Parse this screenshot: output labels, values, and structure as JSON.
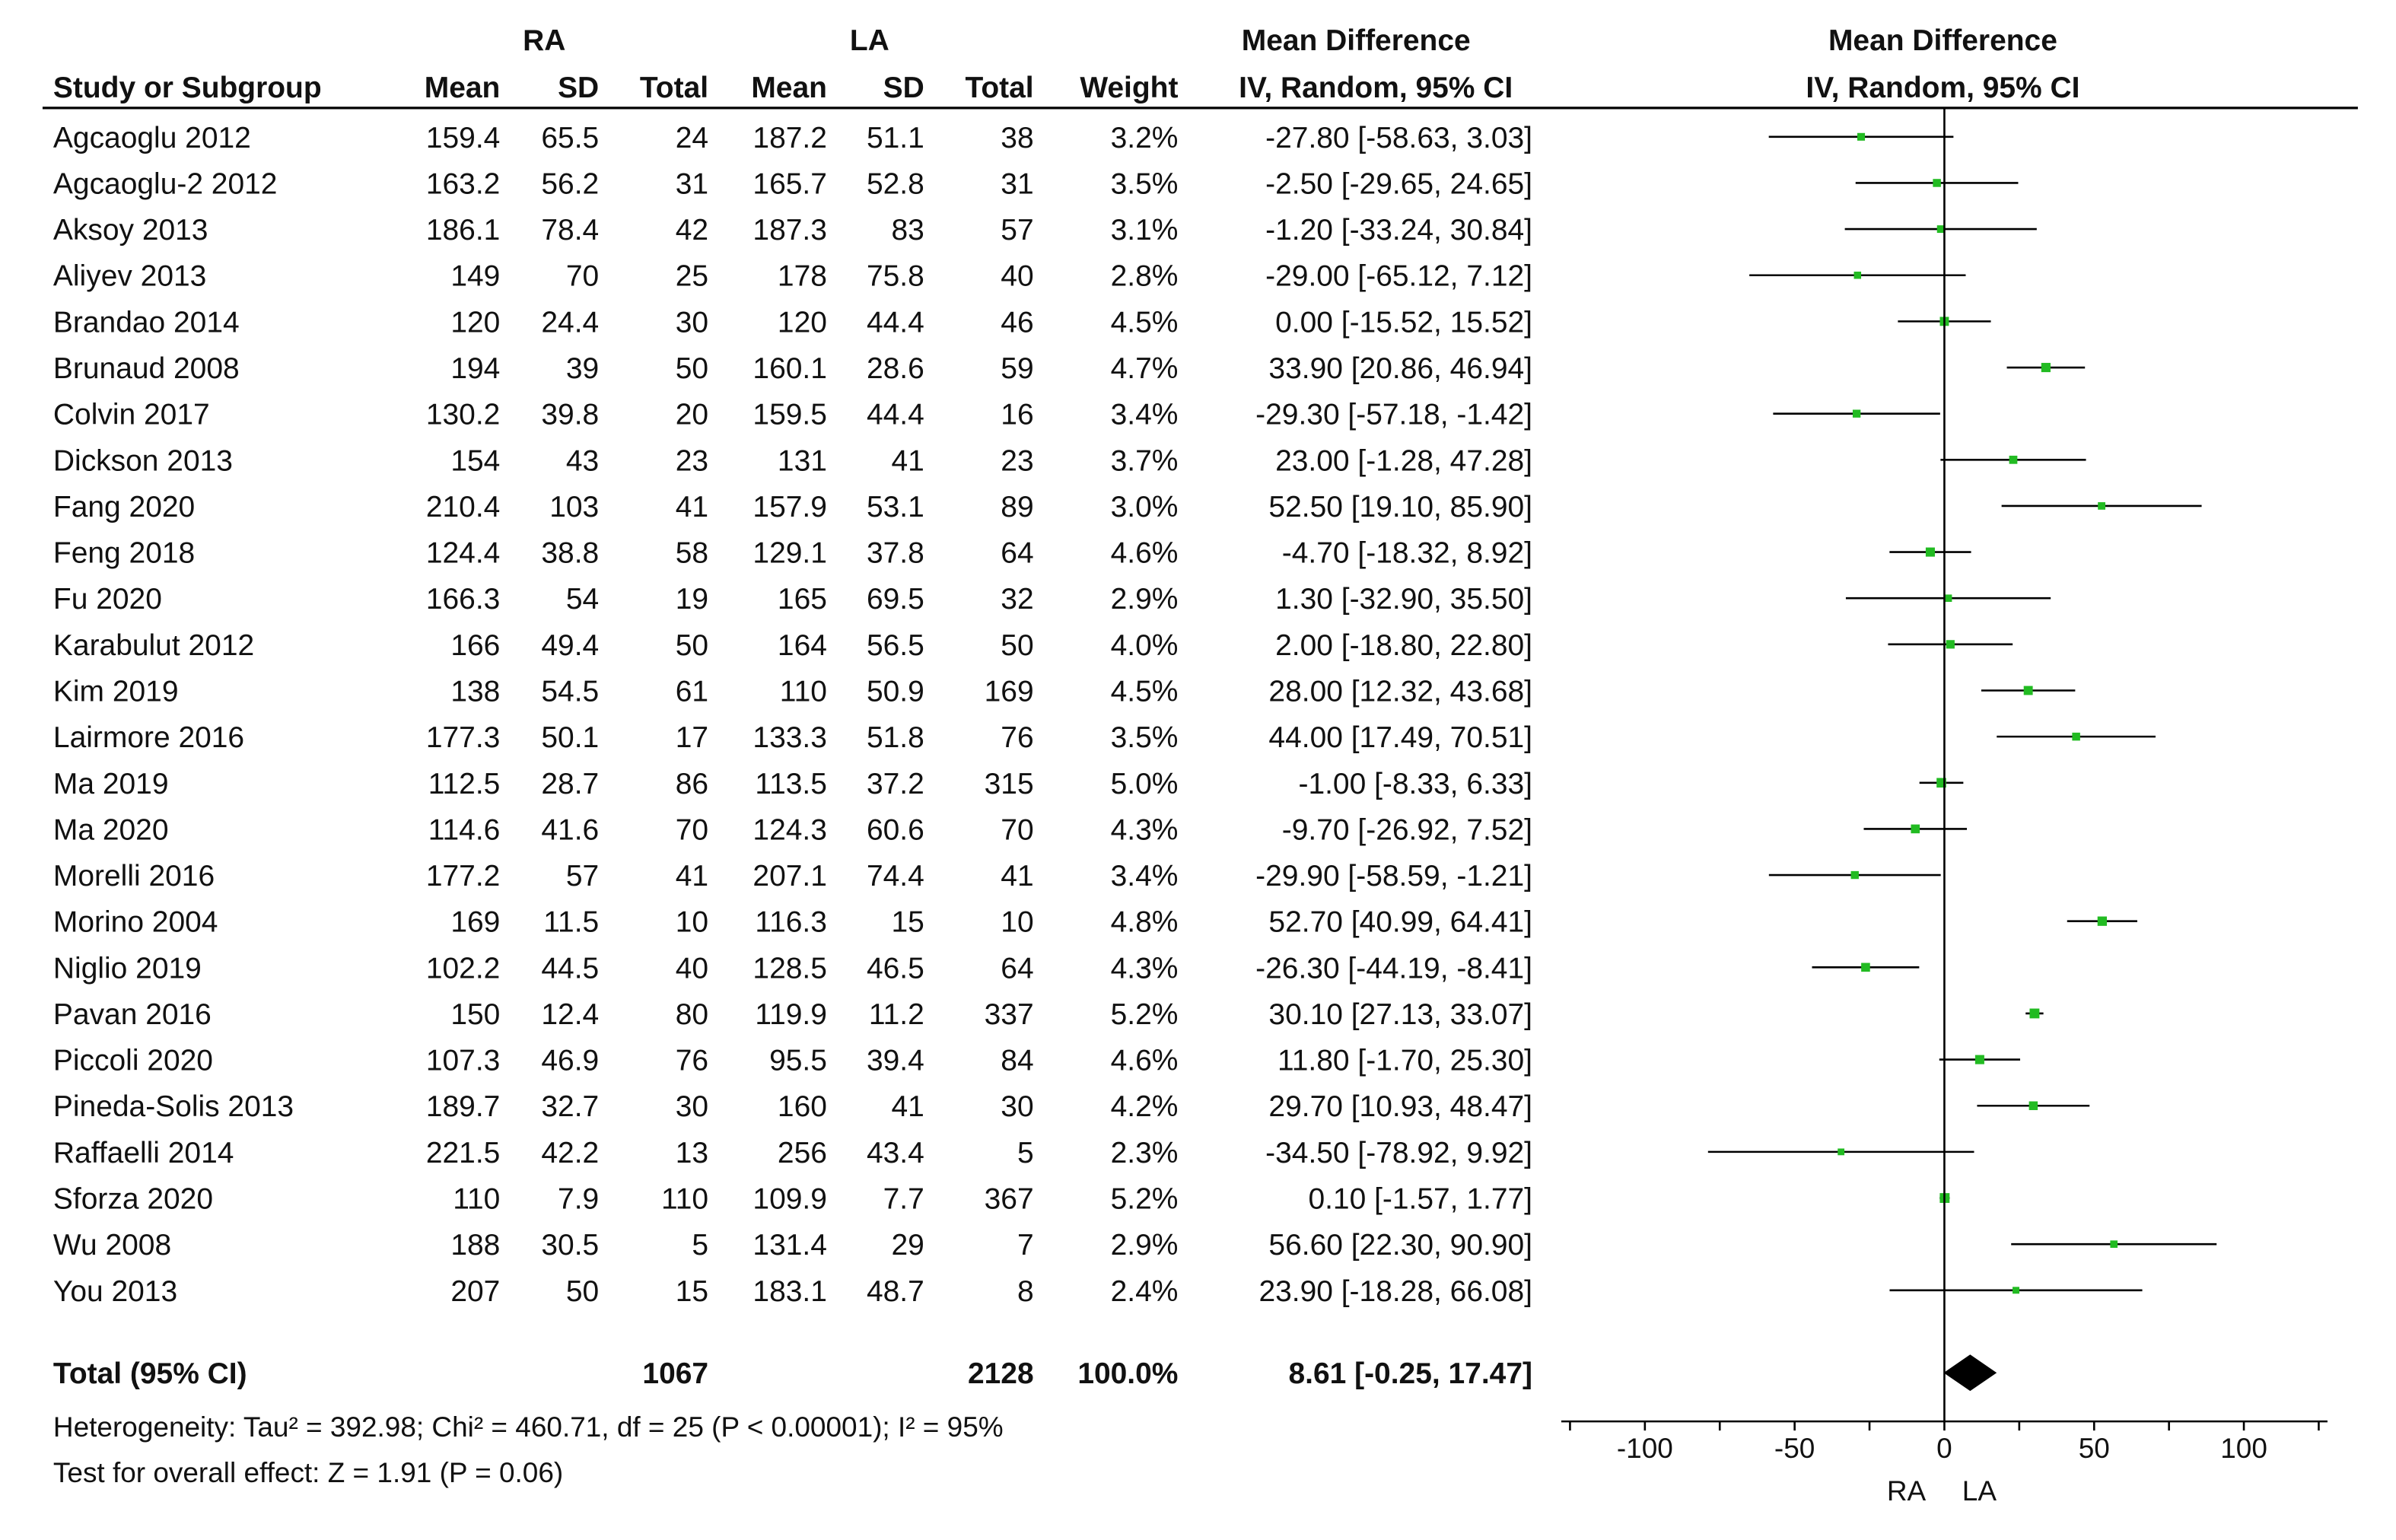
{
  "header": {
    "group_a": "RA",
    "group_b": "LA",
    "col_study": "Study or Subgroup",
    "col_mean": "Mean",
    "col_sd": "SD",
    "col_total": "Total",
    "col_weight": "Weight",
    "col_md_top": "Mean Difference",
    "col_md_bottom": "IV, Random, 95% CI",
    "plot_md_top": "Mean Difference",
    "plot_md_bottom": "IV, Random, 95% CI"
  },
  "studies": [
    {
      "name": "Agcaoglu 2012",
      "ra_mean": "159.4",
      "ra_sd": "65.5",
      "ra_total": "24",
      "la_mean": "187.2",
      "la_sd": "51.1",
      "la_total": "38",
      "weight": "3.2%",
      "ci_text": "-27.80 [-58.63, 3.03]",
      "md": -27.8,
      "lo": -58.63,
      "hi": 3.03
    },
    {
      "name": "Agcaoglu-2 2012",
      "ra_mean": "163.2",
      "ra_sd": "56.2",
      "ra_total": "31",
      "la_mean": "165.7",
      "la_sd": "52.8",
      "la_total": "31",
      "weight": "3.5%",
      "ci_text": "-2.50 [-29.65, 24.65]",
      "md": -2.5,
      "lo": -29.65,
      "hi": 24.65
    },
    {
      "name": "Aksoy 2013",
      "ra_mean": "186.1",
      "ra_sd": "78.4",
      "ra_total": "42",
      "la_mean": "187.3",
      "la_sd": "83",
      "la_total": "57",
      "weight": "3.1%",
      "ci_text": "-1.20 [-33.24, 30.84]",
      "md": -1.2,
      "lo": -33.24,
      "hi": 30.84
    },
    {
      "name": "Aliyev 2013",
      "ra_mean": "149",
      "ra_sd": "70",
      "ra_total": "25",
      "la_mean": "178",
      "la_sd": "75.8",
      "la_total": "40",
      "weight": "2.8%",
      "ci_text": "-29.00 [-65.12, 7.12]",
      "md": -29.0,
      "lo": -65.12,
      "hi": 7.12
    },
    {
      "name": "Brandao 2014",
      "ra_mean": "120",
      "ra_sd": "24.4",
      "ra_total": "30",
      "la_mean": "120",
      "la_sd": "44.4",
      "la_total": "46",
      "weight": "4.5%",
      "ci_text": "0.00 [-15.52, 15.52]",
      "md": 0.0,
      "lo": -15.52,
      "hi": 15.52
    },
    {
      "name": "Brunaud 2008",
      "ra_mean": "194",
      "ra_sd": "39",
      "ra_total": "50",
      "la_mean": "160.1",
      "la_sd": "28.6",
      "la_total": "59",
      "weight": "4.7%",
      "ci_text": "33.90 [20.86, 46.94]",
      "md": 33.9,
      "lo": 20.86,
      "hi": 46.94
    },
    {
      "name": "Colvin 2017",
      "ra_mean": "130.2",
      "ra_sd": "39.8",
      "ra_total": "20",
      "la_mean": "159.5",
      "la_sd": "44.4",
      "la_total": "16",
      "weight": "3.4%",
      "ci_text": "-29.30 [-57.18, -1.42]",
      "md": -29.3,
      "lo": -57.18,
      "hi": -1.42
    },
    {
      "name": "Dickson 2013",
      "ra_mean": "154",
      "ra_sd": "43",
      "ra_total": "23",
      "la_mean": "131",
      "la_sd": "41",
      "la_total": "23",
      "weight": "3.7%",
      "ci_text": "23.00 [-1.28, 47.28]",
      "md": 23.0,
      "lo": -1.28,
      "hi": 47.28
    },
    {
      "name": "Fang 2020",
      "ra_mean": "210.4",
      "ra_sd": "103",
      "ra_total": "41",
      "la_mean": "157.9",
      "la_sd": "53.1",
      "la_total": "89",
      "weight": "3.0%",
      "ci_text": "52.50 [19.10, 85.90]",
      "md": 52.5,
      "lo": 19.1,
      "hi": 85.9
    },
    {
      "name": "Feng 2018",
      "ra_mean": "124.4",
      "ra_sd": "38.8",
      "ra_total": "58",
      "la_mean": "129.1",
      "la_sd": "37.8",
      "la_total": "64",
      "weight": "4.6%",
      "ci_text": "-4.70 [-18.32, 8.92]",
      "md": -4.7,
      "lo": -18.32,
      "hi": 8.92
    },
    {
      "name": "Fu 2020",
      "ra_mean": "166.3",
      "ra_sd": "54",
      "ra_total": "19",
      "la_mean": "165",
      "la_sd": "69.5",
      "la_total": "32",
      "weight": "2.9%",
      "ci_text": "1.30 [-32.90, 35.50]",
      "md": 1.3,
      "lo": -32.9,
      "hi": 35.5
    },
    {
      "name": "Karabulut 2012",
      "ra_mean": "166",
      "ra_sd": "49.4",
      "ra_total": "50",
      "la_mean": "164",
      "la_sd": "56.5",
      "la_total": "50",
      "weight": "4.0%",
      "ci_text": "2.00 [-18.80, 22.80]",
      "md": 2.0,
      "lo": -18.8,
      "hi": 22.8
    },
    {
      "name": "Kim 2019",
      "ra_mean": "138",
      "ra_sd": "54.5",
      "ra_total": "61",
      "la_mean": "110",
      "la_sd": "50.9",
      "la_total": "169",
      "weight": "4.5%",
      "ci_text": "28.00 [12.32, 43.68]",
      "md": 28.0,
      "lo": 12.32,
      "hi": 43.68
    },
    {
      "name": "Lairmore 2016",
      "ra_mean": "177.3",
      "ra_sd": "50.1",
      "ra_total": "17",
      "la_mean": "133.3",
      "la_sd": "51.8",
      "la_total": "76",
      "weight": "3.5%",
      "ci_text": "44.00 [17.49, 70.51]",
      "md": 44.0,
      "lo": 17.49,
      "hi": 70.51
    },
    {
      "name": "Ma 2019",
      "ra_mean": "112.5",
      "ra_sd": "28.7",
      "ra_total": "86",
      "la_mean": "113.5",
      "la_sd": "37.2",
      "la_total": "315",
      "weight": "5.0%",
      "ci_text": "-1.00 [-8.33, 6.33]",
      "md": -1.0,
      "lo": -8.33,
      "hi": 6.33
    },
    {
      "name": "Ma 2020",
      "ra_mean": "114.6",
      "ra_sd": "41.6",
      "ra_total": "70",
      "la_mean": "124.3",
      "la_sd": "60.6",
      "la_total": "70",
      "weight": "4.3%",
      "ci_text": "-9.70 [-26.92, 7.52]",
      "md": -9.7,
      "lo": -26.92,
      "hi": 7.52
    },
    {
      "name": "Morelli 2016",
      "ra_mean": "177.2",
      "ra_sd": "57",
      "ra_total": "41",
      "la_mean": "207.1",
      "la_sd": "74.4",
      "la_total": "41",
      "weight": "3.4%",
      "ci_text": "-29.90 [-58.59, -1.21]",
      "md": -29.9,
      "lo": -58.59,
      "hi": -1.21
    },
    {
      "name": "Morino 2004",
      "ra_mean": "169",
      "ra_sd": "11.5",
      "ra_total": "10",
      "la_mean": "116.3",
      "la_sd": "15",
      "la_total": "10",
      "weight": "4.8%",
      "ci_text": "52.70 [40.99, 64.41]",
      "md": 52.7,
      "lo": 40.99,
      "hi": 64.41
    },
    {
      "name": "Niglio 2019",
      "ra_mean": "102.2",
      "ra_sd": "44.5",
      "ra_total": "40",
      "la_mean": "128.5",
      "la_sd": "46.5",
      "la_total": "64",
      "weight": "4.3%",
      "ci_text": "-26.30 [-44.19, -8.41]",
      "md": -26.3,
      "lo": -44.19,
      "hi": -8.41
    },
    {
      "name": "Pavan 2016",
      "ra_mean": "150",
      "ra_sd": "12.4",
      "ra_total": "80",
      "la_mean": "119.9",
      "la_sd": "11.2",
      "la_total": "337",
      "weight": "5.2%",
      "ci_text": "30.10 [27.13, 33.07]",
      "md": 30.1,
      "lo": 27.13,
      "hi": 33.07
    },
    {
      "name": "Piccoli 2020",
      "ra_mean": "107.3",
      "ra_sd": "46.9",
      "ra_total": "76",
      "la_mean": "95.5",
      "la_sd": "39.4",
      "la_total": "84",
      "weight": "4.6%",
      "ci_text": "11.80 [-1.70, 25.30]",
      "md": 11.8,
      "lo": -1.7,
      "hi": 25.3
    },
    {
      "name": "Pineda-Solis 2013",
      "ra_mean": "189.7",
      "ra_sd": "32.7",
      "ra_total": "30",
      "la_mean": "160",
      "la_sd": "41",
      "la_total": "30",
      "weight": "4.2%",
      "ci_text": "29.70 [10.93, 48.47]",
      "md": 29.7,
      "lo": 10.93,
      "hi": 48.47
    },
    {
      "name": "Raffaelli 2014",
      "ra_mean": "221.5",
      "ra_sd": "42.2",
      "ra_total": "13",
      "la_mean": "256",
      "la_sd": "43.4",
      "la_total": "5",
      "weight": "2.3%",
      "ci_text": "-34.50 [-78.92, 9.92]",
      "md": -34.5,
      "lo": -78.92,
      "hi": 9.92
    },
    {
      "name": "Sforza 2020",
      "ra_mean": "110",
      "ra_sd": "7.9",
      "ra_total": "110",
      "la_mean": "109.9",
      "la_sd": "7.7",
      "la_total": "367",
      "weight": "5.2%",
      "ci_text": "0.10 [-1.57, 1.77]",
      "md": 0.1,
      "lo": -1.57,
      "hi": 1.77
    },
    {
      "name": "Wu 2008",
      "ra_mean": "188",
      "ra_sd": "30.5",
      "ra_total": "5",
      "la_mean": "131.4",
      "la_sd": "29",
      "la_total": "7",
      "weight": "2.9%",
      "ci_text": "56.60 [22.30, 90.90]",
      "md": 56.6,
      "lo": 22.3,
      "hi": 90.9
    },
    {
      "name": "You 2013",
      "ra_mean": "207",
      "ra_sd": "50",
      "ra_total": "15",
      "la_mean": "183.1",
      "la_sd": "48.7",
      "la_total": "8",
      "weight": "2.4%",
      "ci_text": "23.90 [-18.28, 66.08]",
      "md": 23.9,
      "lo": -18.28,
      "hi": 66.08
    }
  ],
  "total": {
    "label": "Total (95% CI)",
    "ra_total": "1067",
    "la_total": "2128",
    "weight": "100.0%",
    "ci_text": "8.61 [-0.25, 17.47]",
    "md": 8.61,
    "lo": -0.25,
    "hi": 17.47
  },
  "footer": {
    "heterogeneity": "Heterogeneity: Tau² = 392.98; Chi² = 460.71, df = 25 (P < 0.00001); I² = 95%",
    "overall_effect": "Test for overall effect: Z = 1.91 (P = 0.06)"
  },
  "colors": {
    "point": "#22bb22",
    "line": "#000000",
    "diamond": "#000000"
  },
  "chart_data": {
    "type": "forest",
    "title": "Mean Difference, IV, Random, 95% CI",
    "xlabel_left": "RA",
    "xlabel_right": "LA",
    "xlim": [
      -125,
      125
    ],
    "ticks": [
      -100,
      -50,
      0,
      50,
      100
    ],
    "tick_labels": [
      "-100",
      "-50",
      "0",
      "50",
      "100"
    ],
    "studies": [
      "Agcaoglu 2012",
      "Agcaoglu-2 2012",
      "Aksoy 2013",
      "Aliyev 2013",
      "Brandao 2014",
      "Brunaud 2008",
      "Colvin 2017",
      "Dickson 2013",
      "Fang 2020",
      "Feng 2018",
      "Fu 2020",
      "Karabulut 2012",
      "Kim 2019",
      "Lairmore 2016",
      "Ma 2019",
      "Ma 2020",
      "Morelli 2016",
      "Morino 2004",
      "Niglio 2019",
      "Pavan 2016",
      "Piccoli 2020",
      "Pineda-Solis 2013",
      "Raffaelli 2014",
      "Sforza 2020",
      "Wu 2008",
      "You 2013"
    ],
    "mean_difference": [
      -27.8,
      -2.5,
      -1.2,
      -29.0,
      0.0,
      33.9,
      -29.3,
      23.0,
      52.5,
      -4.7,
      1.3,
      2.0,
      28.0,
      44.0,
      -1.0,
      -9.7,
      -29.9,
      52.7,
      -26.3,
      30.1,
      11.8,
      29.7,
      -34.5,
      0.1,
      56.6,
      23.9
    ],
    "ci_lower": [
      -58.63,
      -29.65,
      -33.24,
      -65.12,
      -15.52,
      20.86,
      -57.18,
      -1.28,
      19.1,
      -18.32,
      -32.9,
      -18.8,
      12.32,
      17.49,
      -8.33,
      -26.92,
      -58.59,
      40.99,
      -44.19,
      27.13,
      -1.7,
      10.93,
      -78.92,
      -1.57,
      22.3,
      -18.28
    ],
    "ci_upper": [
      3.03,
      24.65,
      30.84,
      7.12,
      15.52,
      46.94,
      -1.42,
      47.28,
      85.9,
      8.92,
      35.5,
      22.8,
      43.68,
      70.51,
      6.33,
      7.52,
      -1.21,
      64.41,
      -8.41,
      33.07,
      25.3,
      48.47,
      9.92,
      1.77,
      90.9,
      66.08
    ],
    "weights_percent": [
      3.2,
      3.5,
      3.1,
      2.8,
      4.5,
      4.7,
      3.4,
      3.7,
      3.0,
      4.6,
      2.9,
      4.0,
      4.5,
      3.5,
      5.0,
      4.3,
      3.4,
      4.8,
      4.3,
      5.2,
      4.6,
      4.2,
      2.3,
      5.2,
      2.9,
      2.4
    ],
    "pooled": {
      "md": 8.61,
      "lo": -0.25,
      "hi": 17.47
    }
  }
}
